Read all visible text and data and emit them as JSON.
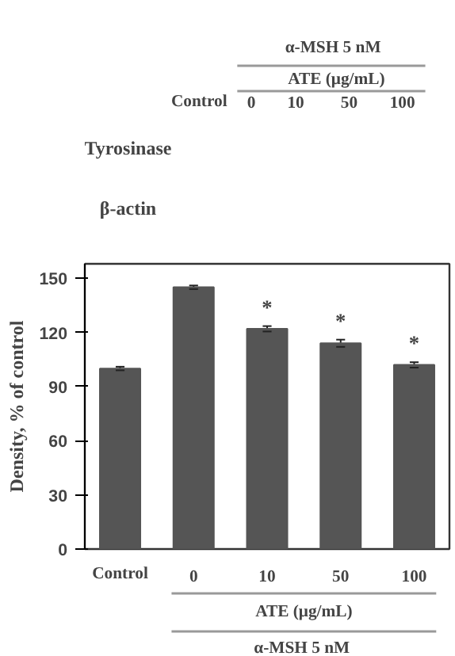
{
  "chart_data": {
    "type": "bar",
    "ylabel": "Density, % of control",
    "categories": [
      "Control",
      "0",
      "10",
      "50",
      "100"
    ],
    "values": [
      100,
      145,
      122,
      114,
      102
    ],
    "errors": [
      1,
      1,
      1.5,
      2,
      1.5
    ],
    "color": "#555555",
    "ylim": [
      0,
      158
    ],
    "yticks": [
      0,
      30,
      60,
      90,
      120,
      150
    ],
    "grid": false,
    "annotations": [
      "α-MSH  5 nM",
      "ATE (μg/mL)",
      "Tyrosinase",
      "β-actin",
      "*",
      "*",
      "*"
    ]
  }
}
